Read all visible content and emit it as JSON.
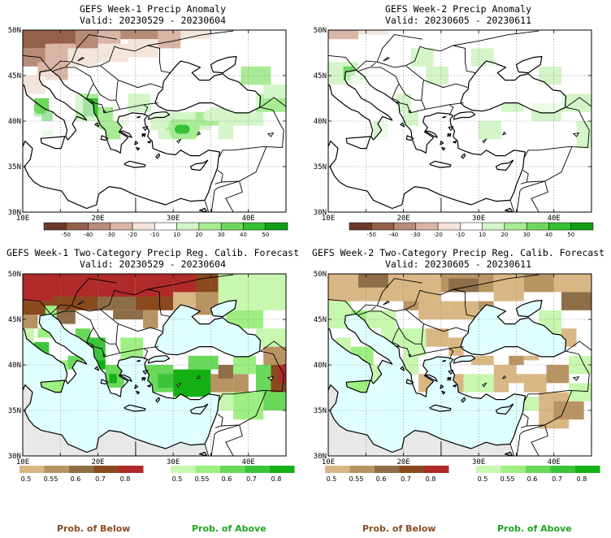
{
  "panels": [
    {
      "title": "GEFS Week-1 Precip Anomaly",
      "valid": "Valid: 20230529 - 20230604",
      "type": "anomaly",
      "week": 1
    },
    {
      "title": "GEFS Week-2 Precip Anomaly",
      "valid": "Valid: 20230605 - 20230611",
      "type": "anomaly",
      "week": 2
    },
    {
      "title": "GEFS Week-1 Two-Category Precip Reg. Calib. Forecast",
      "valid": "Valid: 20230529 - 20230604",
      "type": "prob",
      "week": 1
    },
    {
      "title": "GEFS Week-2 Two-Category Precip Reg. Calib. Forecast",
      "valid": "Valid: 20230605 - 20230611",
      "type": "prob",
      "week": 2
    }
  ],
  "axes": {
    "lat_labels": [
      "50N",
      "45N",
      "40N",
      "35N",
      "30N"
    ],
    "lon_labels": [
      "10E",
      "20E",
      "30E",
      "40E"
    ]
  },
  "anomaly_scale": {
    "labels": [
      "-50",
      "-40",
      "-30",
      "-20",
      "-10",
      "10",
      "20",
      "30",
      "40",
      "50"
    ],
    "colors": [
      "#6b3a2a",
      "#94604a",
      "#b88a78",
      "#d9b5a6",
      "#f3e4dc",
      "#ffffff",
      "#d4f5c8",
      "#a8eb94",
      "#6ed85e",
      "#34c232",
      "#0f9e16"
    ]
  },
  "prob_scale": {
    "below_labels": [
      "0.5",
      "0.55",
      "0.6",
      "0.7",
      "0.8"
    ],
    "below_colors": [
      "#d9b784",
      "#b99463",
      "#8e6e48",
      "#8a4a1e",
      "#b02a2a"
    ],
    "above_labels": [
      "0.5",
      "0.55",
      "0.6",
      "0.7",
      "0.8"
    ],
    "above_colors": [
      "#c8f7b0",
      "#9def82",
      "#6ad85a",
      "#3bc43a",
      "#14b014"
    ]
  },
  "colors": {
    "sea_prob": "#e0ffff",
    "land_default": "#ffffff",
    "africa_prob": "#e8e8e8",
    "coast": "#000000"
  },
  "footer": {
    "below_label": "Prob. of Below",
    "above_label": "Prob. of Above"
  }
}
